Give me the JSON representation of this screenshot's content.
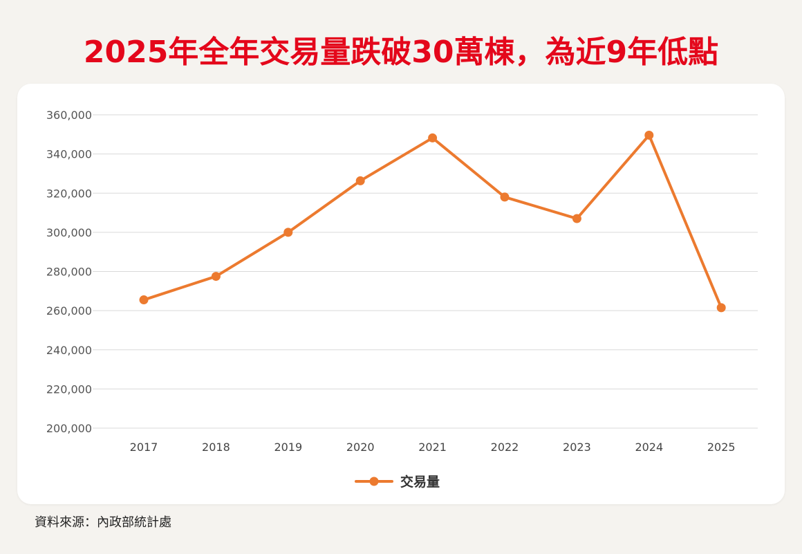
{
  "title": "2025年全年交易量跌破30萬棟，為近9年低點",
  "source": "資料來源：內政部統計處",
  "colors": {
    "title": "#e4071b",
    "line": "#ec7a2f",
    "grid": "#d9d9d9",
    "background": "#f5f3ef",
    "card": "#ffffff"
  },
  "chart_data": {
    "type": "line",
    "categories": [
      "2017",
      "2018",
      "2019",
      "2020",
      "2021",
      "2022",
      "2023",
      "2024",
      "2025"
    ],
    "series": [
      {
        "name": "交易量",
        "values": [
          265500,
          277500,
          300000,
          326300,
          348200,
          318000,
          307000,
          349600,
          261500
        ]
      }
    ],
    "ylim": [
      200000,
      360000
    ],
    "yticks": [
      "200,000",
      "220,000",
      "240,000",
      "260,000",
      "280,000",
      "300,000",
      "320,000",
      "340,000",
      "360,000"
    ],
    "ytick_values": [
      200000,
      220000,
      240000,
      260000,
      280000,
      300000,
      320000,
      340000,
      360000
    ],
    "grid": true,
    "legend": "bottom-center",
    "xlabel": "",
    "ylabel": ""
  }
}
